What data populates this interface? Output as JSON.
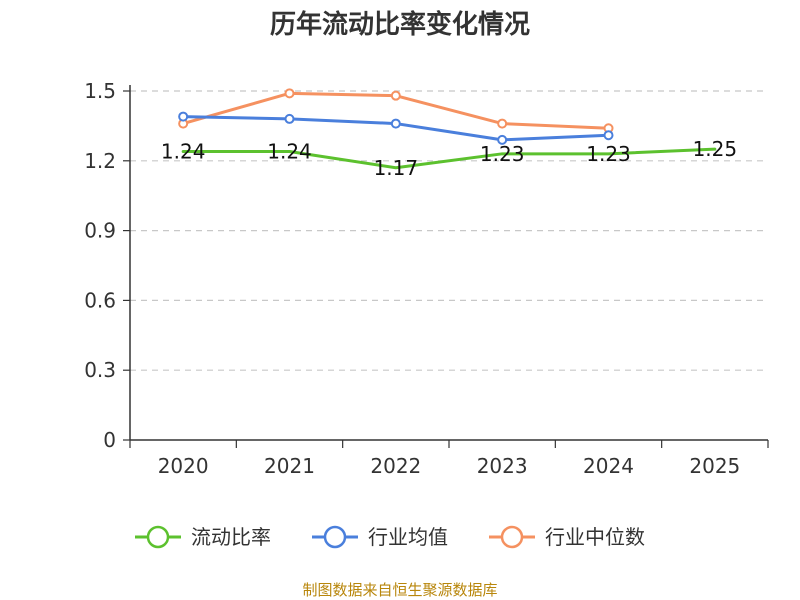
{
  "title": "历年流动比率变化情况",
  "source": "制图数据来自恒生聚源数据库",
  "chart_data": {
    "type": "line",
    "title": "历年流动比率变化情况",
    "categories": [
      "2020",
      "2021",
      "2022",
      "2023",
      "2024",
      "2025"
    ],
    "ylim": [
      0,
      1.5
    ],
    "yticks": [
      "0",
      "0.3",
      "0.6",
      "0.9",
      "1.2",
      "1.5"
    ],
    "grid": true,
    "legend_position": "bottom",
    "series": [
      {
        "name": "流动比率",
        "color": "#5cc12e",
        "values": [
          1.24,
          1.24,
          1.17,
          1.23,
          1.23,
          1.25
        ],
        "labels": [
          "1.24",
          "1.24",
          "1.17",
          "1.23",
          "1.23",
          "1.25"
        ]
      },
      {
        "name": "行业均值",
        "color": "#4a7fdc",
        "values": [
          1.39,
          1.38,
          1.36,
          1.29,
          1.31,
          null
        ]
      },
      {
        "name": "行业中位数",
        "color": "#f59160",
        "values": [
          1.36,
          1.49,
          1.48,
          1.36,
          1.34,
          null
        ]
      }
    ]
  }
}
